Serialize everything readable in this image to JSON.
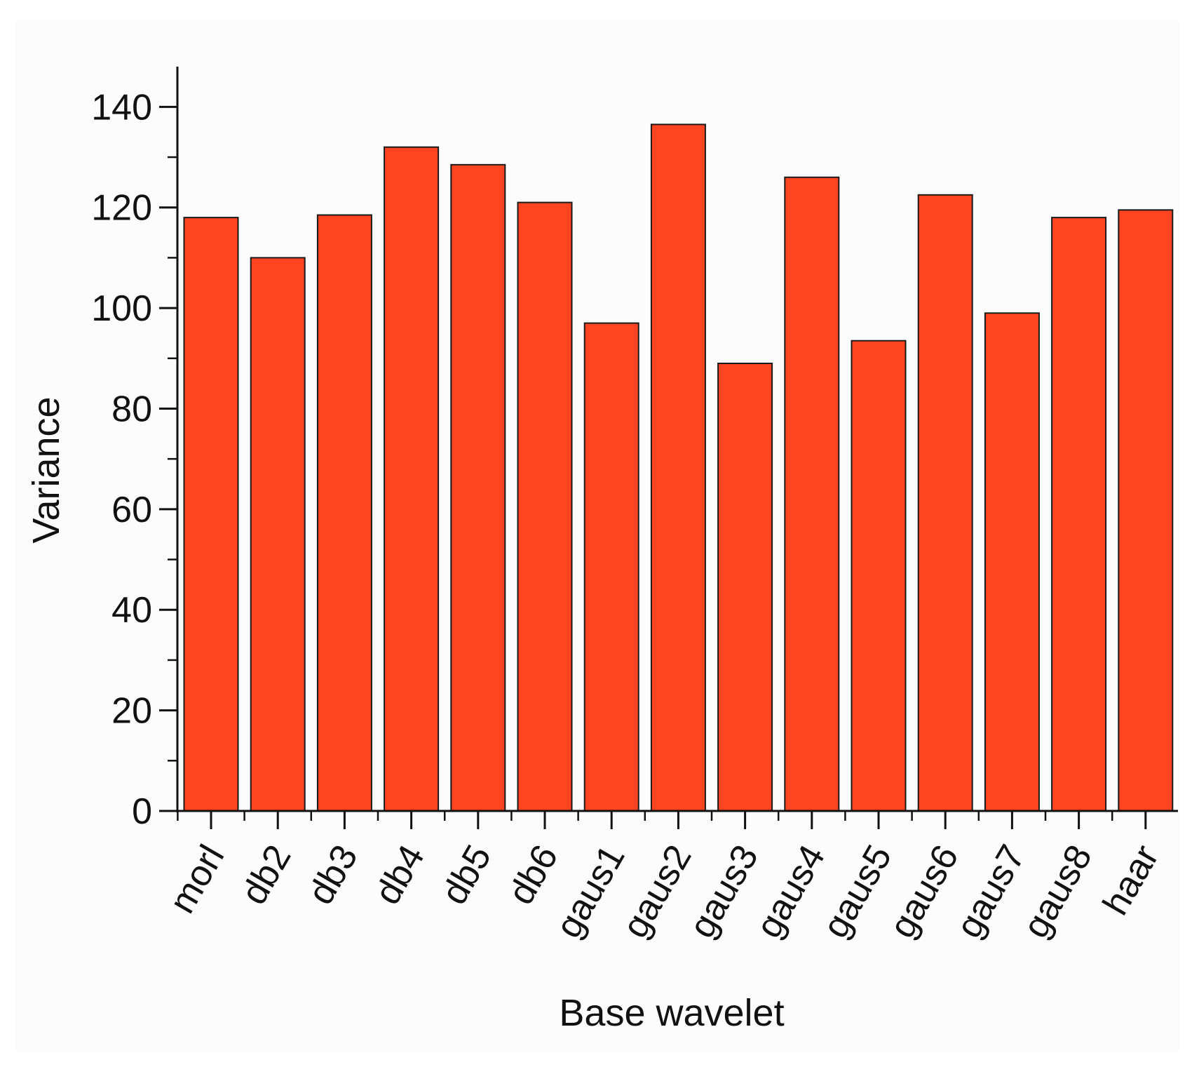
{
  "chart_data": {
    "type": "bar",
    "title": "",
    "xlabel": "Base wavelet",
    "ylabel": "Variance",
    "categories": [
      "morl",
      "db2",
      "db3",
      "db4",
      "db5",
      "db6",
      "gaus1",
      "gaus2",
      "gaus3",
      "gaus4",
      "gaus5",
      "gaus6",
      "gaus7",
      "gaus8",
      "haar"
    ],
    "values": [
      118,
      110,
      118.5,
      132,
      128.5,
      121,
      97,
      136.5,
      89,
      126,
      93.5,
      122.5,
      99,
      118,
      119.5
    ],
    "ylim": [
      0,
      148
    ],
    "yticks": [
      "0",
      "20",
      "40",
      "60",
      "80",
      "100",
      "120",
      "140"
    ],
    "grid": false,
    "legend": "none",
    "bar_color": "#ff4422",
    "bar_edge_color": "#1a1a1a"
  }
}
